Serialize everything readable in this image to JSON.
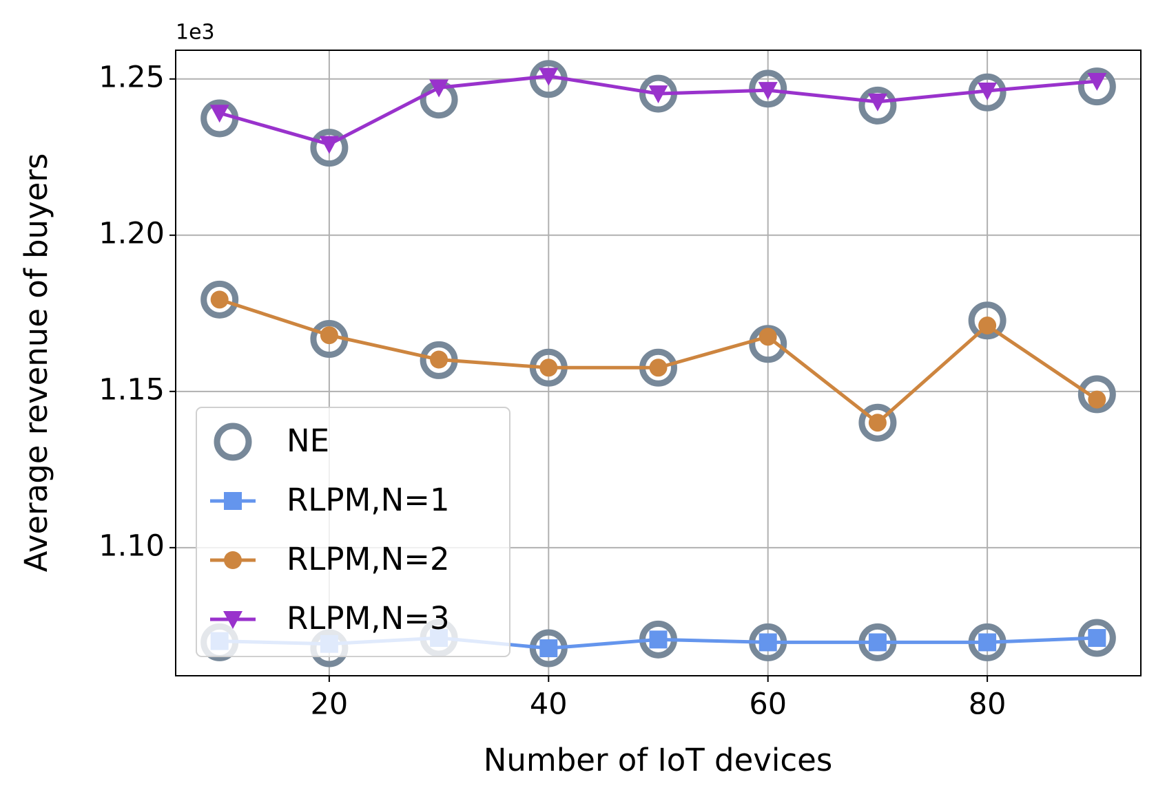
{
  "chart_data": {
    "type": "line",
    "xlabel": "Number of IoT devices",
    "ylabel": "Average revenue of buyers",
    "y_offset_label": "1e3",
    "xlim": [
      6,
      94
    ],
    "ylim": [
      1.059,
      1.2592
    ],
    "xticks": [
      20,
      40,
      60,
      80
    ],
    "yticks": [
      {
        "value": 1.1,
        "label": "1.10"
      },
      1.15,
      {
        "value": 1.2,
        "label": "1.20"
      },
      1.25
    ],
    "grid": true,
    "legend": "lower left",
    "series": [
      {
        "name": "NE",
        "color": "#778899",
        "marker": "hollow-circle",
        "line": false,
        "x": [
          10,
          20,
          30,
          40,
          50,
          60,
          70,
          80,
          90,
          10,
          20,
          30,
          40,
          50,
          60,
          70,
          80,
          90,
          10,
          20,
          30,
          40,
          50,
          60,
          70,
          80,
          90
        ],
        "values": [
          1.2374,
          1.228,
          1.2434,
          1.25,
          1.2453,
          1.2469,
          1.2415,
          1.2457,
          1.2476,
          1.1794,
          1.1668,
          1.16,
          1.1576,
          1.1576,
          1.1652,
          1.14,
          1.1727,
          1.1491,
          1.0697,
          1.0678,
          1.0711,
          1.0678,
          1.0706,
          1.0697,
          1.0697,
          1.0697,
          1.0711
        ]
      },
      {
        "name": "RLPM,N=1",
        "color": "#6495ed",
        "marker": "square",
        "line": true,
        "x": [
          10,
          20,
          30,
          40,
          50,
          60,
          70,
          80,
          90
        ],
        "values": [
          1.0701,
          1.0692,
          1.0711,
          1.0678,
          1.0706,
          1.0697,
          1.0697,
          1.0697,
          1.0711
        ]
      },
      {
        "name": "RLPM,N=2",
        "color": "#cd853f",
        "marker": "circle",
        "line": true,
        "x": [
          10,
          20,
          30,
          40,
          50,
          60,
          70,
          80,
          90
        ],
        "values": [
          1.1794,
          1.168,
          1.1602,
          1.1576,
          1.1576,
          1.1675,
          1.14,
          1.1711,
          1.1474
        ]
      },
      {
        "name": "RLPM,N=3",
        "color": "#9932cc",
        "marker": "triangle-down",
        "line": true,
        "x": [
          10,
          20,
          30,
          40,
          50,
          60,
          70,
          80,
          90
        ],
        "values": [
          1.2391,
          1.2291,
          1.2472,
          1.2509,
          1.2453,
          1.2464,
          1.2427,
          1.2462,
          1.2493
        ]
      }
    ]
  }
}
